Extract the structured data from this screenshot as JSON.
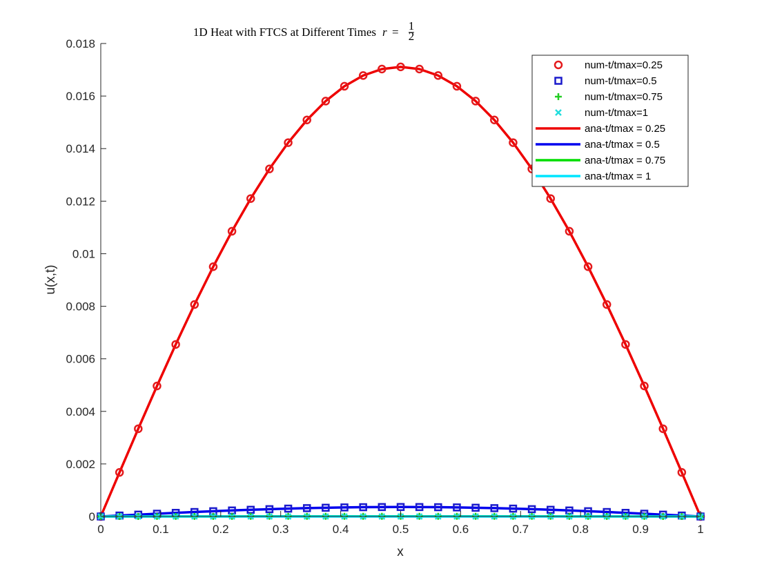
{
  "chart_data": {
    "type": "line",
    "title": "1D Heat with FTCS at Different Times",
    "title_math": {
      "var": "r",
      "eq": "=",
      "frac_num": "1",
      "frac_den": "2"
    },
    "xlabel": "x",
    "ylabel": "u(x,t)",
    "xlim": [
      0,
      1
    ],
    "ylim": [
      0,
      0.018
    ],
    "x_ticks": [
      "0",
      "0.1",
      "0.2",
      "0.3",
      "0.4",
      "0.5",
      "0.6",
      "0.7",
      "0.8",
      "0.9",
      "1"
    ],
    "y_ticks": [
      "0",
      "0.002",
      "0.004",
      "0.006",
      "0.008",
      "0.01",
      "0.012",
      "0.014",
      "0.016",
      "0.018"
    ],
    "grid": false,
    "legend_position": "top-right",
    "x": [
      0,
      0.03125,
      0.0625,
      0.09375,
      0.125,
      0.15625,
      0.1875,
      0.21875,
      0.25,
      0.28125,
      0.3125,
      0.34375,
      0.375,
      0.40625,
      0.4375,
      0.46875,
      0.5,
      0.53125,
      0.5625,
      0.59375,
      0.625,
      0.65625,
      0.6875,
      0.71875,
      0.75,
      0.78125,
      0.8125,
      0.84375,
      0.875,
      0.90625,
      0.9375,
      0.96875,
      1
    ],
    "series": [
      {
        "name": "num-t/tmax=0.25",
        "kind": "markers",
        "marker": "circle",
        "color": "#e41a1c",
        "peak": 0.01711
      },
      {
        "name": "num-t/tmax=0.5",
        "kind": "markers",
        "marker": "square",
        "color": "#1a1acc",
        "peak": 0.00036
      },
      {
        "name": "num-t/tmax=0.75",
        "kind": "markers",
        "marker": "plus",
        "color": "#22cc22",
        "peak": 7.5e-06
      },
      {
        "name": "num-t/tmax=1",
        "kind": "markers",
        "marker": "x",
        "color": "#22dddd",
        "peak": 1.6e-07
      },
      {
        "name": "ana-t/tmax = 0.25",
        "kind": "line",
        "color": "#ee0000",
        "peak": 0.01711
      },
      {
        "name": "ana-t/tmax = 0.5",
        "kind": "line",
        "color": "#0000ee",
        "peak": 0.00036
      },
      {
        "name": "ana-t/tmax = 0.75",
        "kind": "line",
        "color": "#00dd00",
        "peak": 7.5e-06
      },
      {
        "name": "ana-t/tmax = 1",
        "kind": "line",
        "color": "#00e5ff",
        "peak": 1.6e-07
      }
    ]
  }
}
